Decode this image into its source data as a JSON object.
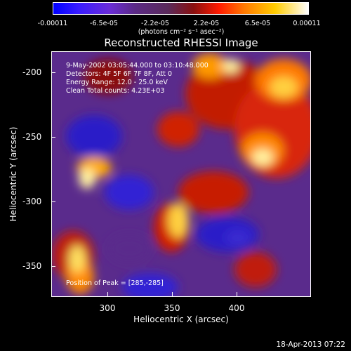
{
  "colorbar": {
    "ticks": [
      "-0.00011",
      "-6.5e-05",
      "-2.2e-05",
      "2.2e-05",
      "6.5e-05",
      "0.00011"
    ],
    "units": "(photons cm⁻² s⁻¹ asec⁻²)"
  },
  "plot": {
    "title": "Reconstructed RHESSI Image",
    "info": {
      "time": "9-May-2002 03:05:44.000 to 03:10:48.000",
      "detectors": "Detectors: 4F 5F 6F 7F 8F, Att 0",
      "energy": "Energy Range: 12.0 - 25.0 keV",
      "clean": "Clean    Total counts: 4.23E+03"
    },
    "peak": "Position of Peak = [285,-285]",
    "xlabel": "Heliocentric X (arcsec)",
    "ylabel": "Heliocentric Y (arcsec)",
    "xticks": [
      "300",
      "350",
      "400"
    ],
    "yticks": [
      "-200",
      "-250",
      "-300",
      "-350"
    ]
  },
  "timestamp": "18-Apr-2013 07:22"
}
